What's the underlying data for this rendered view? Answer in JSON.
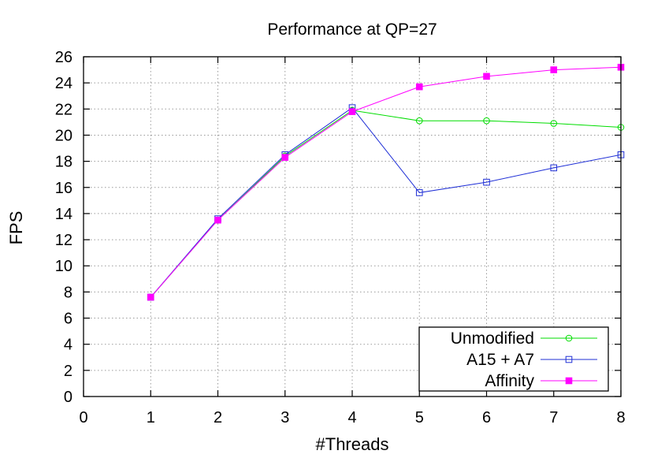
{
  "chart_data": {
    "type": "line",
    "title": "Performance at QP=27",
    "xlabel": "#Threads",
    "ylabel": "FPS",
    "xlim": [
      0,
      8
    ],
    "ylim": [
      0,
      26
    ],
    "xticks": [
      0,
      1,
      2,
      3,
      4,
      5,
      6,
      7,
      8
    ],
    "yticks": [
      0,
      2,
      4,
      6,
      8,
      10,
      12,
      14,
      16,
      18,
      20,
      22,
      24,
      26
    ],
    "grid": true,
    "legend_position": "bottom-right",
    "series": [
      {
        "name": "Unmodified",
        "color": "#00dd00",
        "marker": "open-circle",
        "x": [
          1,
          2,
          3,
          4,
          5,
          6,
          7,
          8
        ],
        "y": [
          7.6,
          13.5,
          18.4,
          21.9,
          21.1,
          21.1,
          20.9,
          20.6
        ]
      },
      {
        "name": "A15 + A7",
        "color": "#1f2fd6",
        "marker": "open-square",
        "x": [
          1,
          2,
          3,
          4,
          5,
          6,
          7,
          8
        ],
        "y": [
          7.6,
          13.6,
          18.5,
          22.1,
          15.6,
          16.4,
          17.5,
          18.5
        ]
      },
      {
        "name": "Affinity",
        "color": "#ff00ff",
        "marker": "filled-square",
        "x": [
          1,
          2,
          3,
          4,
          5,
          6,
          7,
          8
        ],
        "y": [
          7.6,
          13.5,
          18.3,
          21.8,
          23.7,
          24.5,
          25.0,
          25.2
        ]
      }
    ]
  }
}
